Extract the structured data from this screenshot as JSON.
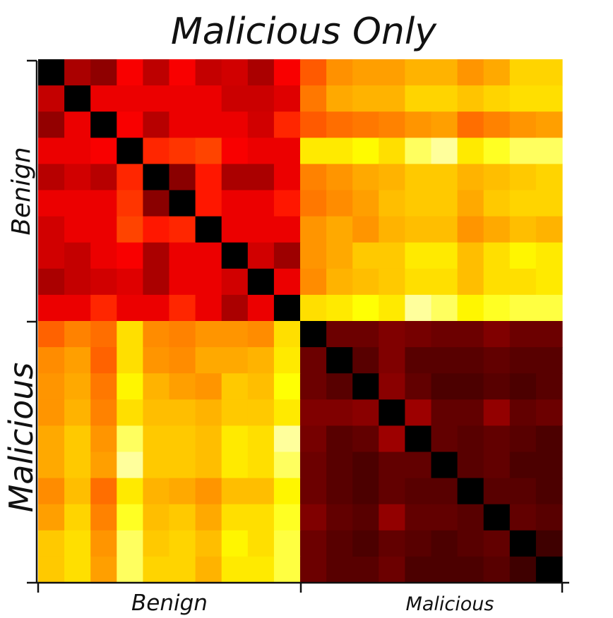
{
  "chart_data": {
    "type": "heatmap",
    "title": "Malicious Only",
    "x_groups": [
      "Benign",
      "Malicious"
    ],
    "y_groups": [
      "Benign",
      "Malicious"
    ],
    "n_per_group": 10,
    "colormap": "hot",
    "colormap_stops": [
      "#000000",
      "#5a0000",
      "#a00000",
      "#ff0000",
      "#ff6a00",
      "#ffb000",
      "#ffff00",
      "#ffffd8"
    ],
    "value_range": [
      0,
      1
    ],
    "grid": false,
    "legend": "none",
    "matrix": [
      [
        0.0,
        0.3,
        0.25,
        0.42,
        0.33,
        0.42,
        0.34,
        0.36,
        0.3,
        0.42,
        0.55,
        0.65,
        0.68,
        0.68,
        0.72,
        0.72,
        0.66,
        0.7,
        0.78,
        0.78
      ],
      [
        0.34,
        0.0,
        0.4,
        0.4,
        0.4,
        0.4,
        0.4,
        0.35,
        0.35,
        0.38,
        0.6,
        0.7,
        0.72,
        0.72,
        0.78,
        0.78,
        0.75,
        0.78,
        0.8,
        0.8
      ],
      [
        0.26,
        0.4,
        0.0,
        0.42,
        0.32,
        0.4,
        0.4,
        0.4,
        0.36,
        0.48,
        0.55,
        0.58,
        0.6,
        0.62,
        0.66,
        0.68,
        0.58,
        0.62,
        0.66,
        0.68
      ],
      [
        0.4,
        0.4,
        0.42,
        0.0,
        0.48,
        0.5,
        0.52,
        0.42,
        0.4,
        0.4,
        0.82,
        0.82,
        0.85,
        0.8,
        0.92,
        0.96,
        0.82,
        0.88,
        0.92,
        0.92
      ],
      [
        0.32,
        0.36,
        0.32,
        0.48,
        0.0,
        0.24,
        0.46,
        0.3,
        0.3,
        0.4,
        0.62,
        0.66,
        0.7,
        0.72,
        0.76,
        0.76,
        0.72,
        0.74,
        0.76,
        0.78
      ],
      [
        0.4,
        0.4,
        0.4,
        0.5,
        0.24,
        0.0,
        0.46,
        0.4,
        0.4,
        0.46,
        0.6,
        0.64,
        0.68,
        0.74,
        0.76,
        0.76,
        0.7,
        0.76,
        0.78,
        0.78
      ],
      [
        0.36,
        0.4,
        0.4,
        0.52,
        0.46,
        0.48,
        0.0,
        0.4,
        0.4,
        0.4,
        0.66,
        0.7,
        0.66,
        0.72,
        0.74,
        0.74,
        0.66,
        0.7,
        0.74,
        0.72
      ],
      [
        0.36,
        0.34,
        0.4,
        0.42,
        0.3,
        0.4,
        0.4,
        0.0,
        0.36,
        0.28,
        0.66,
        0.7,
        0.76,
        0.76,
        0.82,
        0.82,
        0.74,
        0.8,
        0.84,
        0.82
      ],
      [
        0.3,
        0.34,
        0.36,
        0.38,
        0.3,
        0.4,
        0.4,
        0.36,
        0.0,
        0.4,
        0.64,
        0.72,
        0.74,
        0.76,
        0.8,
        0.8,
        0.74,
        0.8,
        0.8,
        0.82
      ],
      [
        0.4,
        0.4,
        0.48,
        0.4,
        0.4,
        0.48,
        0.4,
        0.3,
        0.4,
        0.0,
        0.8,
        0.82,
        0.86,
        0.82,
        0.96,
        0.92,
        0.84,
        0.88,
        0.9,
        0.9
      ],
      [
        0.56,
        0.62,
        0.58,
        0.8,
        0.64,
        0.62,
        0.66,
        0.66,
        0.64,
        0.8,
        0.0,
        0.18,
        0.18,
        0.22,
        0.2,
        0.18,
        0.18,
        0.22,
        0.18,
        0.18
      ],
      [
        0.64,
        0.68,
        0.56,
        0.8,
        0.66,
        0.64,
        0.7,
        0.7,
        0.72,
        0.82,
        0.18,
        0.0,
        0.14,
        0.22,
        0.14,
        0.14,
        0.14,
        0.16,
        0.14,
        0.14
      ],
      [
        0.66,
        0.7,
        0.6,
        0.84,
        0.72,
        0.68,
        0.66,
        0.76,
        0.74,
        0.86,
        0.18,
        0.14,
        0.0,
        0.24,
        0.16,
        0.12,
        0.12,
        0.14,
        0.12,
        0.14
      ],
      [
        0.66,
        0.72,
        0.62,
        0.8,
        0.74,
        0.74,
        0.72,
        0.76,
        0.76,
        0.82,
        0.22,
        0.22,
        0.24,
        0.0,
        0.28,
        0.16,
        0.16,
        0.26,
        0.16,
        0.18
      ],
      [
        0.7,
        0.76,
        0.66,
        0.92,
        0.76,
        0.76,
        0.74,
        0.82,
        0.8,
        0.96,
        0.2,
        0.14,
        0.16,
        0.28,
        0.0,
        0.16,
        0.14,
        0.16,
        0.14,
        0.12
      ],
      [
        0.7,
        0.76,
        0.68,
        0.96,
        0.76,
        0.76,
        0.74,
        0.82,
        0.8,
        0.92,
        0.18,
        0.14,
        0.12,
        0.16,
        0.16,
        0.0,
        0.14,
        0.16,
        0.12,
        0.12
      ],
      [
        0.64,
        0.74,
        0.58,
        0.82,
        0.72,
        0.7,
        0.66,
        0.74,
        0.74,
        0.84,
        0.18,
        0.14,
        0.12,
        0.16,
        0.14,
        0.14,
        0.0,
        0.14,
        0.14,
        0.12
      ],
      [
        0.68,
        0.78,
        0.62,
        0.88,
        0.74,
        0.76,
        0.7,
        0.8,
        0.8,
        0.88,
        0.22,
        0.16,
        0.14,
        0.26,
        0.16,
        0.16,
        0.14,
        0.0,
        0.16,
        0.14
      ],
      [
        0.76,
        0.8,
        0.66,
        0.92,
        0.76,
        0.78,
        0.74,
        0.84,
        0.8,
        0.9,
        0.18,
        0.14,
        0.12,
        0.16,
        0.14,
        0.12,
        0.14,
        0.16,
        0.0,
        0.1
      ],
      [
        0.76,
        0.8,
        0.68,
        0.92,
        0.78,
        0.78,
        0.72,
        0.82,
        0.82,
        0.9,
        0.18,
        0.14,
        0.14,
        0.18,
        0.12,
        0.12,
        0.12,
        0.14,
        0.1,
        0.0
      ]
    ]
  }
}
